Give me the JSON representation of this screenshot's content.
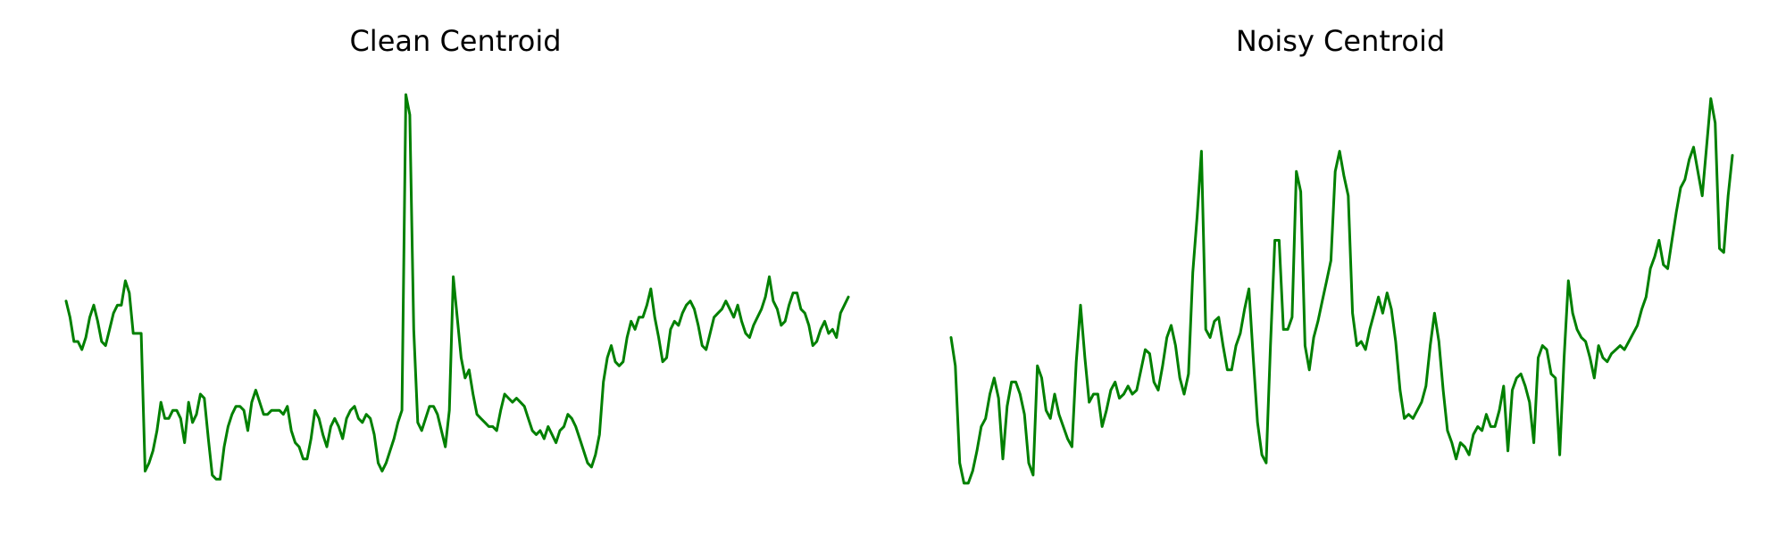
{
  "chart_data": [
    {
      "type": "line",
      "title": "Clean Centroid",
      "xlabel": "",
      "ylabel": "",
      "axes_visible": false,
      "grid": false,
      "line_color": "#008000",
      "xlim": [
        0,
        139
      ],
      "ylim": [
        0,
        1
      ],
      "series": [
        {
          "values": [
            0.47,
            0.43,
            0.37,
            0.37,
            0.35,
            0.38,
            0.43,
            0.46,
            0.42,
            0.37,
            0.36,
            0.4,
            0.44,
            0.46,
            0.46,
            0.52,
            0.49,
            0.39,
            0.39,
            0.39,
            0.05,
            0.07,
            0.1,
            0.15,
            0.22,
            0.18,
            0.18,
            0.2,
            0.2,
            0.18,
            0.12,
            0.22,
            0.17,
            0.19,
            0.24,
            0.23,
            0.13,
            0.04,
            0.03,
            0.03,
            0.11,
            0.16,
            0.19,
            0.21,
            0.21,
            0.2,
            0.15,
            0.22,
            0.25,
            0.22,
            0.19,
            0.19,
            0.2,
            0.2,
            0.2,
            0.19,
            0.21,
            0.15,
            0.12,
            0.11,
            0.08,
            0.08,
            0.13,
            0.2,
            0.18,
            0.14,
            0.11,
            0.16,
            0.18,
            0.16,
            0.13,
            0.18,
            0.2,
            0.21,
            0.18,
            0.17,
            0.19,
            0.18,
            0.14,
            0.07,
            0.05,
            0.07,
            0.1,
            0.13,
            0.17,
            0.2,
            0.98,
            0.93,
            0.4,
            0.17,
            0.15,
            0.18,
            0.21,
            0.21,
            0.19,
            0.15,
            0.11,
            0.2,
            0.53,
            0.43,
            0.33,
            0.28,
            0.3,
            0.24,
            0.19,
            0.18,
            0.17,
            0.16,
            0.16,
            0.15,
            0.2,
            0.24,
            0.23,
            0.22,
            0.23,
            0.22,
            0.21,
            0.18,
            0.15,
            0.14,
            0.15,
            0.13,
            0.16,
            0.14,
            0.12,
            0.15,
            0.16,
            0.19,
            0.18,
            0.16,
            0.13,
            0.1,
            0.07,
            0.06,
            0.09,
            0.14,
            0.27,
            0.33,
            0.36,
            0.32,
            0.31,
            0.32,
            0.38,
            0.42,
            0.4,
            0.43,
            0.43,
            0.46,
            0.5,
            0.43,
            0.38,
            0.32,
            0.33,
            0.4,
            0.42,
            0.41,
            0.44,
            0.46,
            0.47,
            0.45,
            0.41,
            0.36,
            0.35,
            0.39,
            0.43,
            0.44,
            0.45,
            0.47,
            0.45,
            0.43,
            0.46,
            0.42,
            0.39,
            0.38,
            0.41,
            0.43,
            0.45,
            0.48,
            0.53,
            0.47,
            0.45,
            0.41,
            0.42,
            0.46,
            0.49,
            0.49,
            0.45,
            0.44,
            0.41,
            0.36,
            0.37,
            0.4,
            0.42,
            0.39,
            0.4,
            0.38,
            0.44,
            0.46,
            0.48
          ]
        }
      ]
    },
    {
      "type": "line",
      "title": "Noisy Centroid",
      "xlabel": "",
      "ylabel": "",
      "axes_visible": false,
      "grid": false,
      "line_color": "#008000",
      "xlim": [
        0,
        139
      ],
      "ylim": [
        0,
        1
      ],
      "series": [
        {
          "values": [
            0.38,
            0.31,
            0.07,
            0.02,
            0.02,
            0.05,
            0.1,
            0.16,
            0.18,
            0.24,
            0.28,
            0.23,
            0.08,
            0.21,
            0.27,
            0.27,
            0.24,
            0.19,
            0.07,
            0.04,
            0.31,
            0.28,
            0.2,
            0.18,
            0.24,
            0.19,
            0.16,
            0.13,
            0.11,
            0.32,
            0.46,
            0.33,
            0.22,
            0.24,
            0.24,
            0.16,
            0.2,
            0.25,
            0.27,
            0.23,
            0.24,
            0.26,
            0.24,
            0.25,
            0.3,
            0.35,
            0.34,
            0.27,
            0.25,
            0.31,
            0.38,
            0.41,
            0.36,
            0.28,
            0.24,
            0.29,
            0.54,
            0.68,
            0.84,
            0.4,
            0.38,
            0.42,
            0.43,
            0.36,
            0.3,
            0.3,
            0.36,
            0.39,
            0.45,
            0.5,
            0.33,
            0.17,
            0.09,
            0.07,
            0.36,
            0.62,
            0.62,
            0.4,
            0.4,
            0.43,
            0.79,
            0.74,
            0.36,
            0.3,
            0.38,
            0.42,
            0.47,
            0.52,
            0.57,
            0.79,
            0.84,
            0.78,
            0.73,
            0.44,
            0.36,
            0.37,
            0.35,
            0.4,
            0.44,
            0.48,
            0.44,
            0.49,
            0.45,
            0.37,
            0.25,
            0.18,
            0.19,
            0.18,
            0.2,
            0.22,
            0.26,
            0.36,
            0.44,
            0.37,
            0.25,
            0.15,
            0.12,
            0.08,
            0.12,
            0.11,
            0.09,
            0.14,
            0.16,
            0.15,
            0.19,
            0.16,
            0.16,
            0.2,
            0.26,
            0.1,
            0.25,
            0.28,
            0.29,
            0.26,
            0.22,
            0.12,
            0.33,
            0.36,
            0.35,
            0.29,
            0.28,
            0.09,
            0.33,
            0.52,
            0.44,
            0.4,
            0.38,
            0.37,
            0.33,
            0.28,
            0.36,
            0.33,
            0.32,
            0.34,
            0.35,
            0.36,
            0.35,
            0.37,
            0.39,
            0.41,
            0.45,
            0.48,
            0.55,
            0.58,
            0.62,
            0.56,
            0.55,
            0.62,
            0.69,
            0.75,
            0.77,
            0.82,
            0.85,
            0.79,
            0.73,
            0.85,
            0.97,
            0.91,
            0.6,
            0.59,
            0.73,
            0.83
          ]
        }
      ]
    }
  ]
}
